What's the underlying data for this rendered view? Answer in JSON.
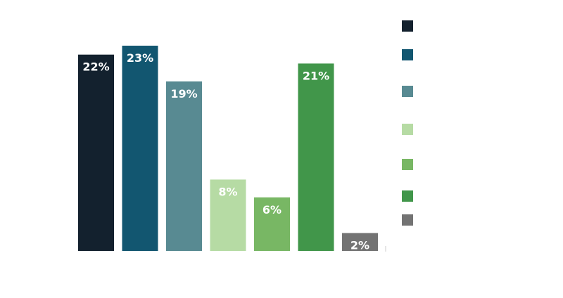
{
  "chart_data": {
    "type": "bar",
    "categories": [
      "",
      "",
      "",
      "",
      "",
      "",
      ""
    ],
    "values": [
      22,
      23,
      19,
      8,
      6,
      21,
      2
    ],
    "labels": [
      "22%",
      "23%",
      "19%",
      "8%",
      "6%",
      "21%",
      "2%"
    ],
    "colors": [
      "#13212e",
      "#125670",
      "#588a92",
      "#b6dba4",
      "#78b764",
      "#41964a",
      "#737373"
    ],
    "ylim": [
      0,
      23
    ],
    "legend": {
      "placement": "right",
      "entries": [
        "",
        "",
        "",
        "",
        "",
        "",
        ""
      ]
    },
    "grid": false
  }
}
